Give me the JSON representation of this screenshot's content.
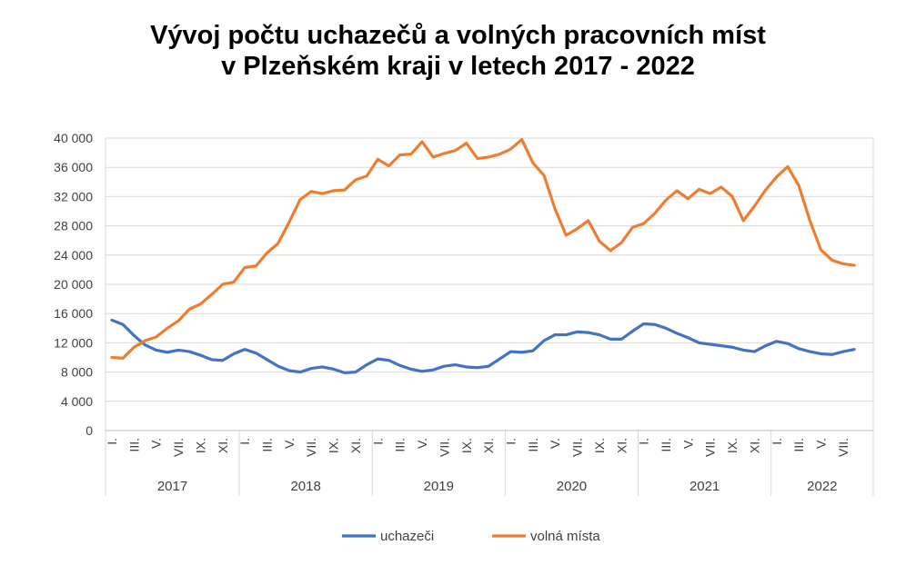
{
  "chart_data": {
    "type": "line",
    "title_lines": [
      "Vývoj počtu uchazečů a volných pracovních míst",
      "v Plzeňském kraji v letech 2017 - 2022"
    ],
    "ylim": [
      0,
      40000
    ],
    "y_ticks": [
      "0",
      "4 000",
      "8 000",
      "12 000",
      "16 000",
      "20 000",
      "24 000",
      "28 000",
      "32 000",
      "36 000",
      "40 000"
    ],
    "y_tick_values": [
      0,
      4000,
      8000,
      12000,
      16000,
      20000,
      24000,
      28000,
      32000,
      36000,
      40000
    ],
    "month_ticks": [
      "I.",
      "III.",
      "V.",
      "VII.",
      "IX.",
      "XI."
    ],
    "month_ticks_last_year": [
      "I.",
      "III.",
      "V.",
      "VII."
    ],
    "years": [
      "2017",
      "2018",
      "2019",
      "2020",
      "2021",
      "2022"
    ],
    "months_count": 68,
    "grid": true,
    "legend_position": "bottom",
    "series": [
      {
        "name": "uchazeči",
        "color": "#4472C4",
        "values": [
          15100,
          14500,
          13000,
          11700,
          11000,
          10700,
          11000,
          10800,
          10300,
          9700,
          9600,
          10500,
          11100,
          10600,
          9700,
          8800,
          8200,
          8000,
          8500,
          8700,
          8400,
          7900,
          8000,
          9000,
          9800,
          9600,
          8900,
          8400,
          8100,
          8300,
          8800,
          9000,
          8700,
          8600,
          8800,
          9800,
          10800,
          10700,
          10900,
          12300,
          13100,
          13100,
          13500,
          13400,
          13100,
          12500,
          12500,
          13600,
          14600,
          14500,
          14000,
          13300,
          12700,
          12000,
          11800,
          11600,
          11400,
          11000,
          10800,
          11600,
          12200,
          11900,
          11200,
          10800,
          10500,
          10400,
          10800,
          11100
        ]
      },
      {
        "name": "volná místa",
        "color": "#ED7D31",
        "values": [
          10000,
          9900,
          11400,
          12300,
          12800,
          14000,
          15000,
          16600,
          17300,
          18600,
          20000,
          20300,
          22300,
          22500,
          24300,
          25600,
          28500,
          31600,
          32700,
          32400,
          32800,
          32900,
          34300,
          34800,
          37100,
          36200,
          37700,
          37800,
          39500,
          37400,
          37900,
          38300,
          39300,
          37200,
          37400,
          37800,
          38500,
          39800,
          36600,
          34900,
          30300,
          26700,
          27600,
          28700,
          25900,
          24600,
          25700,
          27800,
          28300,
          29700,
          31500,
          32800,
          31700,
          33000,
          32400,
          33300,
          32000,
          28700,
          30700,
          32900,
          34700,
          36100,
          33500,
          28700,
          24700,
          23300,
          22800,
          22600
        ]
      }
    ]
  }
}
